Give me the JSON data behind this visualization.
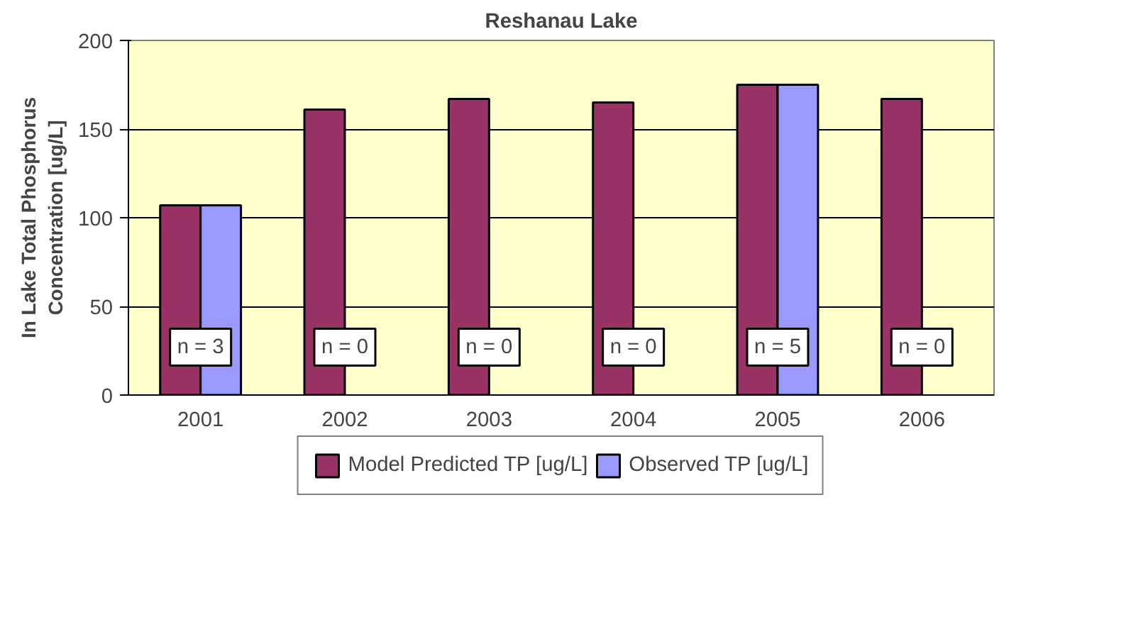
{
  "chart_data": {
    "type": "bar",
    "title": "Reshanau Lake",
    "ylabel": "In Lake Total Phosphorus Concentration [ug/L]",
    "categories": [
      "2001",
      "2002",
      "2003",
      "2004",
      "2005",
      "2006"
    ],
    "series": [
      {
        "name": "Model Predicted TP [ug/L]",
        "color": "#993366",
        "values": [
          107,
          161,
          167,
          165,
          175,
          167
        ]
      },
      {
        "name": "Observed TP [ug/L]",
        "color": "#9999ff",
        "values": [
          107,
          null,
          null,
          null,
          175,
          null
        ]
      }
    ],
    "ylim": [
      0,
      200
    ],
    "yticks": [
      0,
      50,
      100,
      150,
      200
    ],
    "grid": "y",
    "legend": "bottom",
    "annotations": [
      {
        "text": "n = 3",
        "x": "2001",
        "y": 27
      },
      {
        "text": "n = 0",
        "x": "2002",
        "y": 27
      },
      {
        "text": "n = 0",
        "x": "2003",
        "y": 27
      },
      {
        "text": "n = 0",
        "x": "2004",
        "y": 27
      },
      {
        "text": "n = 5",
        "x": "2005",
        "y": 27
      },
      {
        "text": "n = 0",
        "x": "2006",
        "y": 27
      }
    ]
  }
}
